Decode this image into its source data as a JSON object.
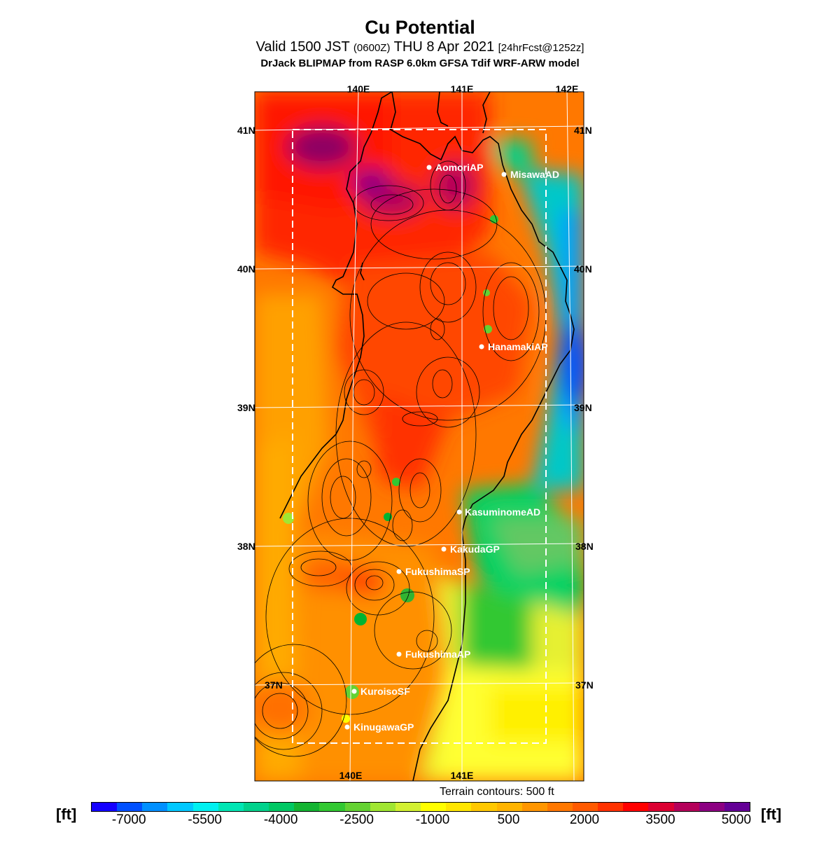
{
  "title": "Cu Potential",
  "subtitle": {
    "part1": "Valid 1500 JST",
    "part2": "(0600Z)",
    "part3": "THU 8 Apr 2021",
    "part4": "[24hrFcst@1252z]"
  },
  "model_line": "DrJack BLIPMAP from RASP 6.0km GFSA Tdif WRF-ARW model",
  "lon_labels_top": [
    "140E",
    "141E",
    "142E"
  ],
  "lon_labels_bottom": [
    "140E",
    "141E"
  ],
  "lat_labels_left": [
    "41N",
    "40N",
    "39N",
    "38N",
    "37N"
  ],
  "lat_labels_right": [
    "41N",
    "40N",
    "39N",
    "38N",
    "37N"
  ],
  "sites": [
    {
      "name": "AomoriAP"
    },
    {
      "name": "MisawaAD"
    },
    {
      "name": "HanamakiAP"
    },
    {
      "name": "KasuminomeAD"
    },
    {
      "name": "KakudaGP"
    },
    {
      "name": "FukushimaSP"
    },
    {
      "name": "FukushimaAP"
    },
    {
      "name": "KuroisoSF"
    },
    {
      "name": "KinugawaGP"
    }
  ],
  "terrain_note": "Terrain contours: 500 ft",
  "colorbar": {
    "unit_left": "[ft]",
    "unit_right": "[ft]",
    "tick_labels": [
      "-7000",
      "-5500",
      "-4000",
      "-2500",
      "-1000",
      "500",
      "2000",
      "3500",
      "5000"
    ],
    "colors": [
      "#1400ff",
      "#0050ff",
      "#0090ff",
      "#00c8ff",
      "#00f0f0",
      "#00e6b4",
      "#00d28c",
      "#00c864",
      "#14b432",
      "#32c832",
      "#64d232",
      "#a0e632",
      "#d2f032",
      "#ffff00",
      "#ffe600",
      "#ffc800",
      "#ffb400",
      "#ff9600",
      "#ff7800",
      "#ff5a00",
      "#ff3200",
      "#ff0000",
      "#dc0032",
      "#b4005a",
      "#8c0082",
      "#640096"
    ]
  }
}
